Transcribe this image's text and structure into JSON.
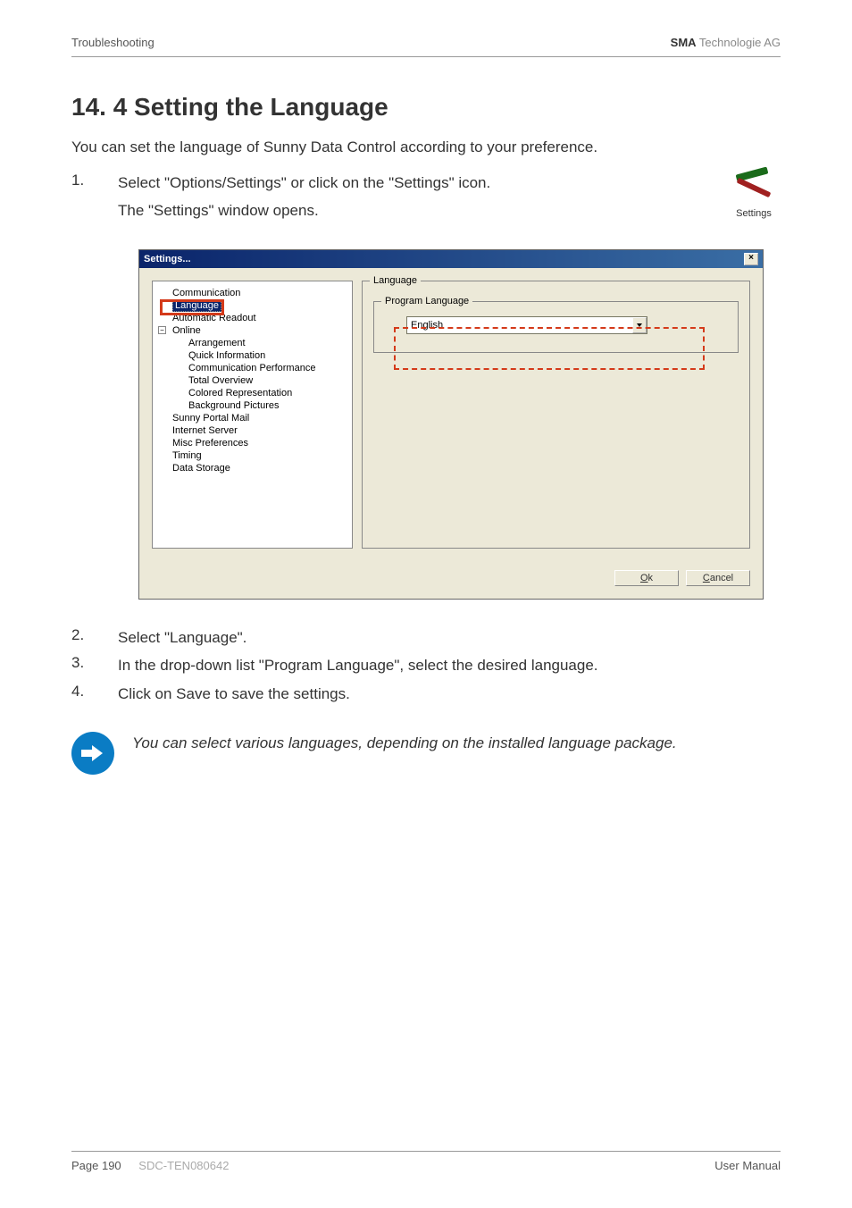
{
  "header": {
    "left": "Troubleshooting",
    "right_bold": "SMA",
    "right_light": " Technologie AG"
  },
  "title": "14. 4 Setting the Language",
  "intro": "You can set the language of Sunny Data Control according to your preference.",
  "steps": {
    "s1_num": "1.",
    "s1_text": "Select \"Options/Settings\" or click on the \"Settings\" icon.",
    "s1_sub": "The \"Settings\" window opens.",
    "s2_num": "2.",
    "s2_text": "Select \"Language\".",
    "s3_num": "3.",
    "s3_text": "In the drop-down list \"Program Language\", select the desired language.",
    "s4_num": "4.",
    "s4_text": "Click on Save to save the settings."
  },
  "settings_icon_label": "Settings",
  "dialog": {
    "title": "Settings...",
    "close": "×",
    "tree": {
      "communication": "Communication",
      "language": "Language",
      "auto_readout": "Automatic Readout",
      "online": "Online",
      "arrangement": "Arrangement",
      "quick_info": "Quick Information",
      "comm_perf": "Communication Performance",
      "total_overview": "Total Overview",
      "colored_rep": "Colored Representation",
      "bg_pictures": "Background Pictures",
      "sunny_portal": "Sunny Portal Mail",
      "internet_server": "Internet Server",
      "misc": "Misc Preferences",
      "timing": "Timing",
      "data_storage": "Data Storage",
      "expand_minus": "−"
    },
    "groupbox_title": "Language",
    "inner_title": "Program Language",
    "dropdown_value": "English",
    "ok_prefix": "O",
    "ok_rest": "k",
    "cancel_prefix": "C",
    "cancel_rest": "ancel"
  },
  "note": "You can select various languages, depending on the installed language package.",
  "footer": {
    "page": "Page 190",
    "code": "SDC-TEN080642",
    "manual": "User Manual"
  },
  "colors": {
    "highlight_red": "#d43a1a",
    "titlebar_start": "#0a246a",
    "titlebar_end": "#3a6ea5",
    "dialog_bg": "#ece9d8",
    "note_blue": "#0a7cc4"
  }
}
